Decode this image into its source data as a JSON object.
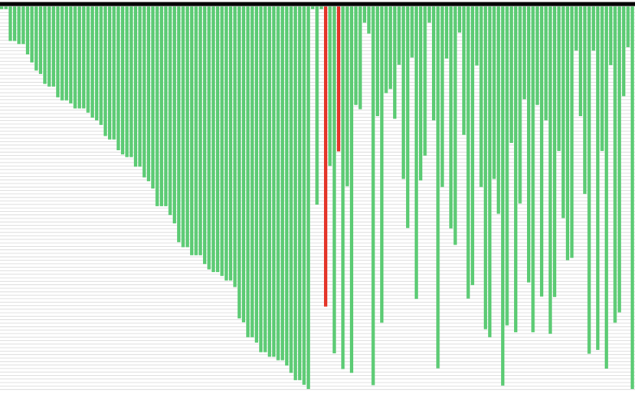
{
  "chart_data": {
    "type": "bar",
    "title": "",
    "xlabel": "",
    "ylabel": "",
    "orientation": "downward",
    "ylim": [
      0,
      100
    ],
    "grid": true,
    "legend": "none",
    "colors": {
      "bar": "#5ccb74",
      "highlight": "#e4362a",
      "grid": "#d9d9d9",
      "topline": "#000000",
      "background": "#ffffff"
    },
    "highlighted_bars": [
      75,
      78
    ],
    "values": [
      0.7,
      0.7,
      9,
      9,
      9.8,
      9.8,
      12.5,
      14.6,
      16.7,
      17.6,
      20.2,
      20.9,
      20.9,
      23.7,
      24.5,
      24.5,
      25.3,
      26.6,
      26.6,
      26.6,
      27.7,
      29,
      29.7,
      30.9,
      33.8,
      34.7,
      34.7,
      37.5,
      38.6,
      39.3,
      39.3,
      41.8,
      41.8,
      44.6,
      45.6,
      47.5,
      52.1,
      52.1,
      52.1,
      54.4,
      56.6,
      61.5,
      62.8,
      62.8,
      64.9,
      64.9,
      64.9,
      67.2,
      68.6,
      69.3,
      69.3,
      70.3,
      71.5,
      71.5,
      73.2,
      81.4,
      82.4,
      86.3,
      86.3,
      87.7,
      90.2,
      90.2,
      91.4,
      91.4,
      92.3,
      92.3,
      93.7,
      95.6,
      97.5,
      97.5,
      98.7,
      99.8,
      0.7,
      51.7,
      0.7,
      78.3,
      41.6,
      90.5,
      37.8,
      94.6,
      46.9,
      95.6,
      25.7,
      26.8,
      4.2,
      7.1,
      98.8,
      28.6,
      82.5,
      22.6,
      21.5,
      29.3,
      15.2,
      45,
      57.8,
      13.3,
      76.3,
      45.4,
      38.9,
      4.2,
      29.7,
      94.4,
      47.1,
      13.6,
      57.9,
      62.2,
      6.8,
      33.5,
      76.2,
      72.7,
      15.4,
      47.1,
      84.2,
      86.3,
      45,
      54.1,
      98.9,
      83.2,
      35.6,
      85,
      51.4,
      24.2,
      72,
      85,
      25.7,
      75.7,
      29.7,
      85.4,
      75.8,
      37.7,
      55.2,
      66.2,
      65.6,
      11.5,
      28.6,
      48.9,
      90.6,
      11.5,
      89.6,
      37.7,
      94.5,
      15.3,
      82.5,
      79.8,
      23.4,
      10.6,
      99.8
    ]
  }
}
